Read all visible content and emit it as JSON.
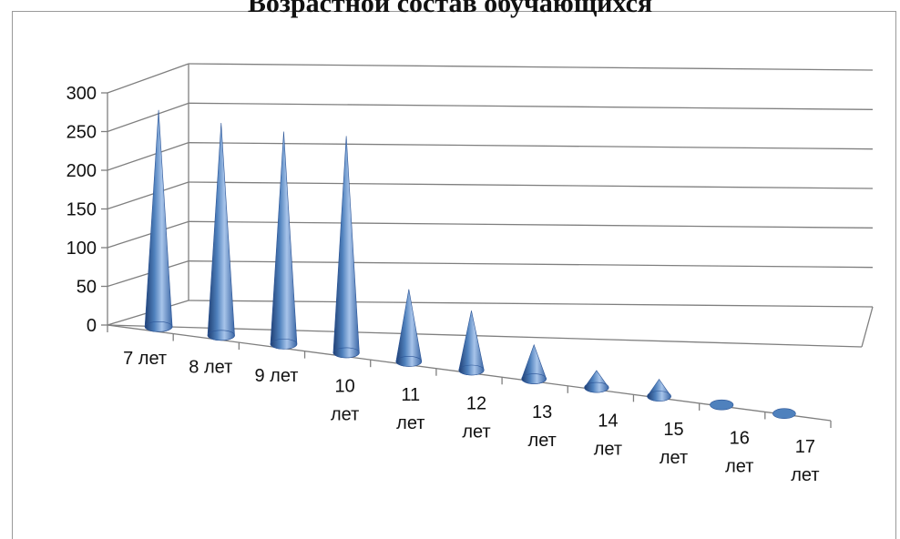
{
  "chart_data": {
    "type": "bar",
    "shape": "cone-3d",
    "title": "Возрастной состав обучающихся",
    "xlabel": "",
    "ylabel": "",
    "ylim": [
      0,
      300
    ],
    "yticks": [
      "0",
      "50",
      "100",
      "150",
      "200",
      "250",
      "300"
    ],
    "categories": [
      [
        "7 лет"
      ],
      [
        "8 лет"
      ],
      [
        "9 лет"
      ],
      [
        "10",
        "лет"
      ],
      [
        "11",
        "лет"
      ],
      [
        "12",
        "лет"
      ],
      [
        "13",
        "лет"
      ],
      [
        "14",
        "лет"
      ],
      [
        "15",
        "лет"
      ],
      [
        "16",
        "лет"
      ],
      [
        "17",
        "лет"
      ]
    ],
    "values": [
      255,
      250,
      250,
      255,
      85,
      70,
      40,
      20,
      20,
      2,
      2
    ],
    "grid": true,
    "legend": "none",
    "colors": {
      "cone": "#4f81bd",
      "cone_dark": "#1f3e72",
      "cone_light": "#a7c4ea",
      "grid": "#7f7f7f",
      "axis": "#7f7f7f"
    }
  }
}
